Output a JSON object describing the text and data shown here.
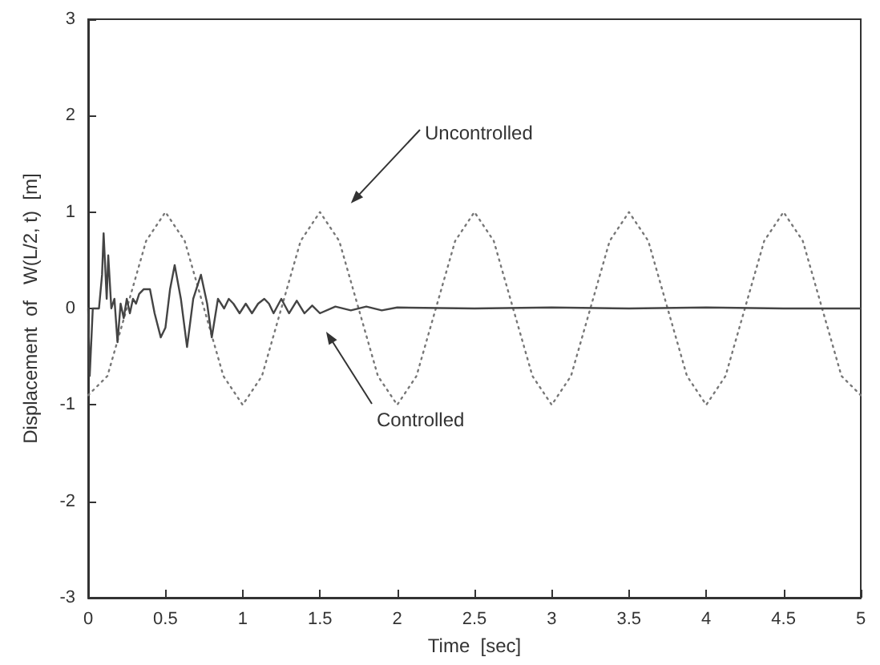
{
  "chart_data": {
    "type": "line",
    "xlabel": "Time  [sec]",
    "ylabel": "Displacement  of   W(L/2, t)  [m]",
    "xlim": [
      0,
      5
    ],
    "xticks": [
      0,
      0.5,
      1,
      1.5,
      2,
      2.5,
      3,
      3.5,
      4,
      4.5,
      5
    ],
    "ylim": [
      -3,
      3
    ],
    "yticks": [
      -3,
      -2,
      -1,
      0,
      1,
      2,
      3
    ],
    "marker": "none",
    "annotations": [
      "Uncontrolled",
      "Controlled"
    ],
    "series": [
      {
        "color": "#777777",
        "line_style": "dotted",
        "x": [
          0,
          0.125,
          0.25,
          0.375,
          0.5,
          0.625,
          0.75,
          0.875,
          1,
          1.125,
          1.25,
          1.375,
          1.5,
          1.625,
          1.75,
          1.875,
          2,
          2.125,
          2.25,
          2.375,
          2.5,
          2.625,
          2.75,
          2.875,
          3,
          3.125,
          3.25,
          3.375,
          3.5,
          3.625,
          3.75,
          3.875,
          4,
          4.125,
          4.25,
          4.375,
          4.5,
          4.625,
          4.75,
          4.875,
          5
        ],
        "values": [
          -0.9,
          -0.7,
          0,
          0.7,
          1,
          0.7,
          0,
          -0.7,
          -1,
          -0.7,
          0,
          0.7,
          1,
          0.7,
          0,
          -0.7,
          -1,
          -0.7,
          0,
          0.7,
          1,
          0.7,
          0,
          -0.7,
          -1,
          -0.7,
          0,
          0.7,
          1,
          0.7,
          0,
          -0.7,
          -1,
          -0.7,
          0,
          0.7,
          1,
          0.7,
          0,
          -0.7,
          -0.9
        ]
      },
      {
        "color": "#444444",
        "line_style": "solid",
        "x": [
          0,
          0.01,
          0.03,
          0.07,
          0.09,
          0.1,
          0.12,
          0.13,
          0.15,
          0.17,
          0.19,
          0.21,
          0.23,
          0.25,
          0.27,
          0.29,
          0.31,
          0.33,
          0.36,
          0.4,
          0.43,
          0.47,
          0.5,
          0.53,
          0.56,
          0.6,
          0.64,
          0.68,
          0.73,
          0.77,
          0.8,
          0.84,
          0.88,
          0.91,
          0.94,
          0.98,
          1.02,
          1.06,
          1.1,
          1.14,
          1.17,
          1.2,
          1.25,
          1.3,
          1.35,
          1.4,
          1.45,
          1.5,
          1.6,
          1.7,
          1.8,
          1.9,
          2,
          2.5,
          3,
          3.5,
          4,
          4.5,
          5
        ],
        "values": [
          0,
          -0.7,
          0,
          0,
          0.35,
          0.78,
          0.1,
          0.55,
          0,
          0.1,
          -0.35,
          0.05,
          -0.1,
          0.1,
          -0.05,
          0.1,
          0.05,
          0.15,
          0.2,
          0.2,
          -0.05,
          -0.3,
          -0.2,
          0.2,
          0.45,
          0.1,
          -0.4,
          0.1,
          0.35,
          0.05,
          -0.3,
          0.1,
          0,
          0.1,
          0.05,
          -0.05,
          0.05,
          -0.05,
          0.05,
          0.1,
          0.05,
          -0.05,
          0.1,
          -0.05,
          0.08,
          -0.05,
          0.03,
          -0.05,
          0.02,
          -0.02,
          0.02,
          -0.02,
          0.01,
          0,
          0.01,
          0,
          0.01,
          0,
          0
        ]
      }
    ]
  }
}
